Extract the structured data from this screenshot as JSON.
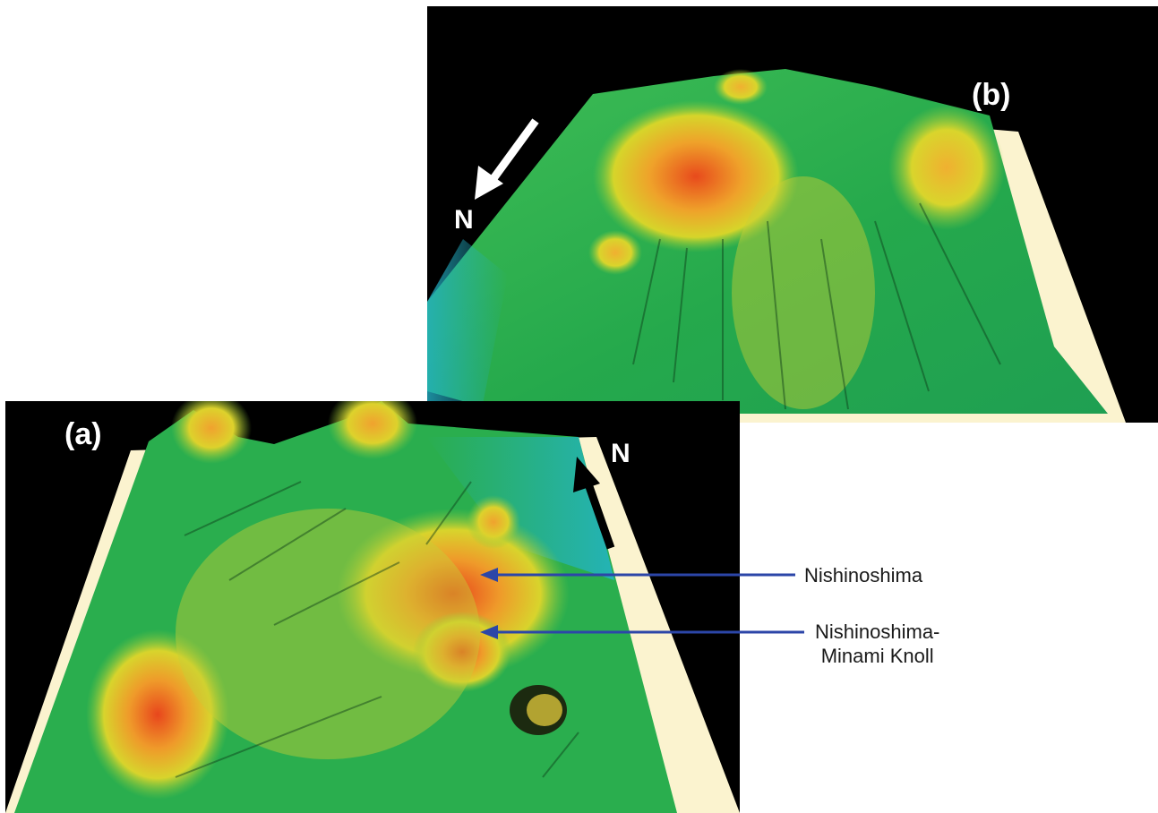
{
  "figure": {
    "panel_b": {
      "label": "(b)",
      "north": "N"
    },
    "panel_a": {
      "label": "(a)",
      "north": "N"
    },
    "annotations": {
      "nishinoshima": "Nishinoshima",
      "knoll_line1": "Nishinoshima-",
      "knoll_line2": "Minami Knoll"
    },
    "colors": {
      "background": "#000000",
      "terrain_low": "#1fb35a",
      "terrain_mid": "#e8d020",
      "terrain_high": "#e8501c",
      "deep_water": "#22b4c8",
      "base_plate": "#fbf3cf",
      "arrow_annotation": "#2c46a8"
    }
  }
}
